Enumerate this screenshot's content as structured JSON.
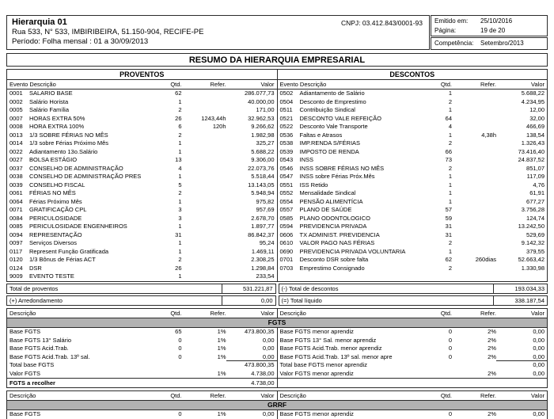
{
  "header": {
    "company": "Hierarquia 01",
    "address": "Rua 533, N° 533, IMBIRIBEIRA, 51.150-904, RECIFE-PE",
    "period": "Período: Folha mensal : 01 a 30/09/2013",
    "cnpj": "CNPJ: 03.412.843/0001-93",
    "emitted_label": "Emitido em:",
    "emitted_value": "25/10/2016",
    "page_label": "Página:",
    "page_value": "19 de 20",
    "competence_label": "Competência:",
    "competence_value": "Setembro/2013"
  },
  "title": "RESUMO DA HIERARQUIA EMPRESARIAL",
  "columns": {
    "event": "Evento Descrição",
    "desc": "Descrição",
    "qty": "Qtd.",
    "ref": "Refer.",
    "value": "Valor"
  },
  "colors": {
    "band_bg": "#b2b2b2",
    "border": "#2b2b2b",
    "page_bg": "#ffffff"
  },
  "proventos": {
    "label": "PROVENTOS",
    "rows": [
      {
        "code": "0001",
        "desc": "SALARIO BASE",
        "qty": "62",
        "ref": "",
        "value": "286.077,73"
      },
      {
        "code": "0002",
        "desc": "Salário Horista",
        "qty": "1",
        "ref": "",
        "value": "40.000,00"
      },
      {
        "code": "0005",
        "desc": "Salário Família",
        "qty": "2",
        "ref": "",
        "value": "171,00"
      },
      {
        "code": "0007",
        "desc": "HORAS EXTRA 50%",
        "qty": "26",
        "ref": "1243,44h",
        "value": "32.962,53"
      },
      {
        "code": "0008",
        "desc": "HORA EXTRA 100%",
        "qty": "6",
        "ref": "120h",
        "value": "9.266,62"
      },
      {
        "code": "0013",
        "desc": "1/3 SOBRE FÉRIAS NO MÊS",
        "qty": "2",
        "ref": "",
        "value": "1.982,98"
      },
      {
        "code": "0014",
        "desc": "1/3 sobre Férias Próximo Mês",
        "qty": "1",
        "ref": "",
        "value": "325,27"
      },
      {
        "code": "0022",
        "desc": "Adiantamento 13o.Salário",
        "qty": "1",
        "ref": "",
        "value": "5.688,22"
      },
      {
        "code": "0027",
        "desc": "BOLSA ESTÁGIO",
        "qty": "13",
        "ref": "",
        "value": "9.306,00"
      },
      {
        "code": "0037",
        "desc": "CONSELHO DE ADMINISTRAÇÃO",
        "qty": "4",
        "ref": "",
        "value": "22.073,76"
      },
      {
        "code": "0038",
        "desc": "CONSELHO DE ADMINISTRAÇÃO PRES",
        "qty": "1",
        "ref": "",
        "value": "5.518,44"
      },
      {
        "code": "0039",
        "desc": "CONSELHO FISCAL",
        "qty": "5",
        "ref": "",
        "value": "13.143,05"
      },
      {
        "code": "0061",
        "desc": "FÉRIAS NO MÊS",
        "qty": "2",
        "ref": "",
        "value": "5.948,94"
      },
      {
        "code": "0064",
        "desc": "Férias Próximo Mês",
        "qty": "1",
        "ref": "",
        "value": "975,82"
      },
      {
        "code": "0071",
        "desc": "GRATIFICAÇÃO CPL",
        "qty": "3",
        "ref": "",
        "value": "957,69"
      },
      {
        "code": "0084",
        "desc": "PERICULOSIDADE",
        "qty": "3",
        "ref": "",
        "value": "2.678,70"
      },
      {
        "code": "0085",
        "desc": "PERICULOSIDADE ENGENHEIROS",
        "qty": "1",
        "ref": "",
        "value": "1.897,77"
      },
      {
        "code": "0094",
        "desc": "REPRESENTAÇÃO",
        "qty": "31",
        "ref": "",
        "value": "86.842,37"
      },
      {
        "code": "0097",
        "desc": "Serviços Diversos",
        "qty": "1",
        "ref": "",
        "value": "95,24"
      },
      {
        "code": "0117",
        "desc": "Represent Função Gratificada",
        "qty": "1",
        "ref": "",
        "value": "1.469,11"
      },
      {
        "code": "0120",
        "desc": "1/3 Bônus de Férias ACT",
        "qty": "2",
        "ref": "",
        "value": "2.308,25"
      },
      {
        "code": "0124",
        "desc": "DSR",
        "qty": "26",
        "ref": "",
        "value": "1.298,84"
      },
      {
        "code": "9009",
        "desc": "EVENTO TESTE",
        "qty": "1",
        "ref": "",
        "value": "233,54"
      }
    ],
    "total_label": "Total de proventos",
    "total_value": "531.221,87",
    "extra_label": "(+) Arredondamento",
    "extra_value": "0,00"
  },
  "descontos": {
    "label": "DESCONTOS",
    "rows": [
      {
        "code": "0502",
        "desc": "Adiantamento de Salário",
        "qty": "1",
        "ref": "",
        "value": "5.688,22"
      },
      {
        "code": "0504",
        "desc": "Desconto de Emprestimo",
        "qty": "2",
        "ref": "",
        "value": "4.234,95"
      },
      {
        "code": "0511",
        "desc": "Contribuição Sindical",
        "qty": "1",
        "ref": "",
        "value": "12,00"
      },
      {
        "code": "0521",
        "desc": "DESCONTO VALE REFEIÇÃO",
        "qty": "64",
        "ref": "",
        "value": "32,00"
      },
      {
        "code": "0522",
        "desc": "Desconto Vale Transporte",
        "qty": "4",
        "ref": "",
        "value": "466,69"
      },
      {
        "code": "0536",
        "desc": "Faltas e Atrasos",
        "qty": "1",
        "ref": "4,38h",
        "value": "138,54"
      },
      {
        "code": "0538",
        "desc": "IMP.RENDA S/FÉRIAS",
        "qty": "2",
        "ref": "",
        "value": "1.326,43"
      },
      {
        "code": "0539",
        "desc": "IMPOSTO DE RENDA",
        "qty": "66",
        "ref": "",
        "value": "73.416,40"
      },
      {
        "code": "0543",
        "desc": "INSS",
        "qty": "73",
        "ref": "",
        "value": "24.837,52"
      },
      {
        "code": "0546",
        "desc": "INSS SOBRE FÉRIAS NO MÊS",
        "qty": "2",
        "ref": "",
        "value": "851,07"
      },
      {
        "code": "0547",
        "desc": "INSS sobre Férias Próx.Mês",
        "qty": "1",
        "ref": "",
        "value": "117,09"
      },
      {
        "code": "0551",
        "desc": "ISS Retido",
        "qty": "1",
        "ref": "",
        "value": "4,76"
      },
      {
        "code": "0552",
        "desc": "Mensalidade Sindical",
        "qty": "1",
        "ref": "",
        "value": "61,91"
      },
      {
        "code": "0554",
        "desc": "PENSÃO ALIMENTÍCIA",
        "qty": "1",
        "ref": "",
        "value": "677,27"
      },
      {
        "code": "0557",
        "desc": "PLANO DE SAÚDE",
        "qty": "57",
        "ref": "",
        "value": "3.756,28"
      },
      {
        "code": "0585",
        "desc": "PLANO ODONTOLOGICO",
        "qty": "59",
        "ref": "",
        "value": "124,74"
      },
      {
        "code": "0594",
        "desc": "PREVIDENCIA PRIVADA",
        "qty": "31",
        "ref": "",
        "value": "13.242,50"
      },
      {
        "code": "0606",
        "desc": "TX ADMINIST. PREVIDENCIA",
        "qty": "31",
        "ref": "",
        "value": "529,69"
      },
      {
        "code": "0610",
        "desc": "VALOR PAGO NAS FÉRIAS",
        "qty": "2",
        "ref": "",
        "value": "9.142,32"
      },
      {
        "code": "0690",
        "desc": "PREVIDENCIA PRIVADA VOLUNTARIA",
        "qty": "1",
        "ref": "",
        "value": "379,55"
      },
      {
        "code": "0701",
        "desc": "Desconto DSR sobre falta",
        "qty": "62",
        "ref": "260dias",
        "value": "52.663,42"
      },
      {
        "code": "0703",
        "desc": "Emprestimo Consignado",
        "qty": "2",
        "ref": "",
        "value": "1.330,98"
      }
    ],
    "total_label": "(-) Total de descontos",
    "total_value": "193.034,33",
    "extra_label": "(=) Total líquido",
    "extra_value": "338.187,54"
  },
  "fgts": {
    "band": "FGTS",
    "left_rows": [
      {
        "desc": "Base FGTS",
        "qty": "65",
        "ref": "1%",
        "value": "473.800,35"
      },
      {
        "desc": "Base FGTS 13° Salário",
        "qty": "0",
        "ref": "1%",
        "value": "0,00"
      },
      {
        "desc": "Base FGTS Acid.Trab.",
        "qty": "0",
        "ref": "1%",
        "value": "0,00"
      },
      {
        "desc": "Base FGTS Acid.Trab. 13º sal.",
        "qty": "0",
        "ref": "1%",
        "value": "0,00",
        "sum": true
      },
      {
        "desc": "Total base FGTS",
        "qty": "",
        "ref": "",
        "value": "473.800,35"
      },
      {
        "desc": "Valor FGTS",
        "qty": "",
        "ref": "1%",
        "value": "4.738,00"
      }
    ],
    "right_rows": [
      {
        "desc": "Base FGTS menor aprendiz",
        "qty": "0",
        "ref": "2%",
        "value": "0,00"
      },
      {
        "desc": "Base FGTS 13° Sal. menor aprendiz",
        "qty": "0",
        "ref": "2%",
        "value": "0,00"
      },
      {
        "desc": "Base FGTS Acid.Trab. menor aprendiz",
        "qty": "0",
        "ref": "2%",
        "value": "0,00"
      },
      {
        "desc": "Base FGTS Acid.Trab. 13º sal. menor apre",
        "qty": "0",
        "ref": "2%",
        "value": "0,00",
        "sum": true
      },
      {
        "desc": "Total base FGTS menor aprendiz",
        "qty": "",
        "ref": "",
        "value": "0,00"
      },
      {
        "desc": "Valor FGTS menor aprendiz",
        "qty": "",
        "ref": "2%",
        "value": "0,00"
      }
    ],
    "final_label": "FGTS a recolher",
    "final_value": "4.738,00"
  },
  "grrf": {
    "band": "GRRF",
    "left_rows": [
      {
        "desc": "Base FGTS",
        "qty": "0",
        "ref": "1%",
        "value": "0,00"
      }
    ],
    "right_rows": [
      {
        "desc": "Base FGTS menor aprendiz",
        "qty": "0",
        "ref": "2%",
        "value": "0,00"
      }
    ]
  }
}
